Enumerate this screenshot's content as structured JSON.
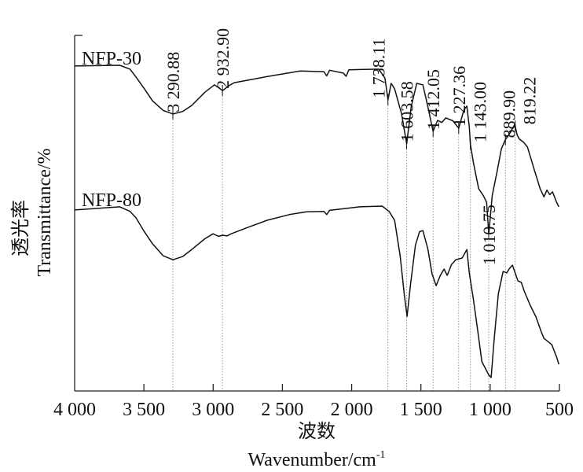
{
  "chart_data": {
    "type": "line",
    "title": "",
    "xlabel_cn": "波数",
    "xlabel": "Wavenumber/cm",
    "xlabel_sup": "-1",
    "ylabel_cn": "透光率",
    "ylabel": "Transmittance/%",
    "xlim": [
      4000,
      500
    ],
    "ylim": [
      0,
      100
    ],
    "x_ticks": [
      4000,
      3500,
      3000,
      2500,
      2000,
      1500,
      1000,
      500
    ],
    "x_tick_labels": [
      "4 000",
      "3 500",
      "3 000",
      "2 500",
      "2 000",
      "1 500",
      "1 000",
      "500"
    ],
    "grid": false,
    "series": [
      {
        "name": "NFP-30",
        "points": [
          [
            4000,
            91.4
          ],
          [
            3674,
            91.6
          ],
          [
            3600,
            90.5
          ],
          [
            3557,
            88.3
          ],
          [
            3500,
            85.2
          ],
          [
            3438,
            81.6
          ],
          [
            3360,
            78.9
          ],
          [
            3290,
            77.9
          ],
          [
            3220,
            78.6
          ],
          [
            3154,
            80.3
          ],
          [
            3060,
            84.0
          ],
          [
            2990,
            86.1
          ],
          [
            2932,
            84.5
          ],
          [
            2880,
            86.0
          ],
          [
            2848,
            86.7
          ],
          [
            2600,
            88.5
          ],
          [
            2371,
            90.0
          ],
          [
            2200,
            89.8
          ],
          [
            2180,
            88.6
          ],
          [
            2160,
            90.2
          ],
          [
            2060,
            89.4
          ],
          [
            2040,
            88.5
          ],
          [
            2020,
            90.3
          ],
          [
            1940,
            90.4
          ],
          [
            1804,
            90.5
          ],
          [
            1760,
            88.0
          ],
          [
            1738,
            81.9
          ],
          [
            1715,
            86.5
          ],
          [
            1690,
            85.0
          ],
          [
            1640,
            78.0
          ],
          [
            1603,
            69.5
          ],
          [
            1570,
            80.0
          ],
          [
            1530,
            86.5
          ],
          [
            1486,
            86.1
          ],
          [
            1450,
            80.0
          ],
          [
            1412,
            73.0
          ],
          [
            1380,
            76.1
          ],
          [
            1350,
            75.5
          ],
          [
            1320,
            76.8
          ],
          [
            1270,
            76.0
          ],
          [
            1227,
            73.9
          ],
          [
            1190,
            79.0
          ],
          [
            1168,
            80.1
          ],
          [
            1150,
            74.0
          ],
          [
            1143,
            69.5
          ],
          [
            1120,
            64.0
          ],
          [
            1083,
            56.9
          ],
          [
            1050,
            55.0
          ],
          [
            1026,
            53.1
          ],
          [
            1010,
            44.2
          ],
          [
            985,
            55.0
          ],
          [
            952,
            61.3
          ],
          [
            920,
            68.0
          ],
          [
            889,
            70.8
          ],
          [
            870,
            71.7
          ],
          [
            850,
            73.0
          ],
          [
            822,
            75.0
          ],
          [
            805,
            72.0
          ],
          [
            788,
            70.8
          ],
          [
            760,
            70.0
          ],
          [
            731,
            68.6
          ],
          [
            680,
            62.0
          ],
          [
            640,
            57.0
          ],
          [
            612,
            54.6
          ],
          [
            590,
            56.5
          ],
          [
            570,
            55.2
          ],
          [
            550,
            56.0
          ],
          [
            520,
            53.0
          ],
          [
            504,
            51.8
          ]
        ]
      },
      {
        "name": "NFP-80",
        "points": [
          [
            4000,
            50.9
          ],
          [
            3674,
            51.8
          ],
          [
            3600,
            50.5
          ],
          [
            3557,
            48.7
          ],
          [
            3500,
            45.0
          ],
          [
            3438,
            41.4
          ],
          [
            3360,
            38.0
          ],
          [
            3290,
            36.9
          ],
          [
            3220,
            37.8
          ],
          [
            3154,
            39.8
          ],
          [
            3060,
            42.8
          ],
          [
            3001,
            44.2
          ],
          [
            2960,
            43.5
          ],
          [
            2932,
            43.8
          ],
          [
            2900,
            43.6
          ],
          [
            2870,
            44.2
          ],
          [
            2750,
            46.0
          ],
          [
            2610,
            48.0
          ],
          [
            2450,
            49.6
          ],
          [
            2326,
            50.4
          ],
          [
            2200,
            50.5
          ],
          [
            2180,
            49.6
          ],
          [
            2160,
            50.8
          ],
          [
            2050,
            51.3
          ],
          [
            1940,
            51.8
          ],
          [
            1780,
            52.0
          ],
          [
            1730,
            50.5
          ],
          [
            1690,
            48.0
          ],
          [
            1650,
            38.0
          ],
          [
            1620,
            27.0
          ],
          [
            1600,
            21.0
          ],
          [
            1575,
            30.0
          ],
          [
            1540,
            41.0
          ],
          [
            1510,
            44.8
          ],
          [
            1486,
            45.1
          ],
          [
            1450,
            40.0
          ],
          [
            1420,
            33.0
          ],
          [
            1390,
            29.6
          ],
          [
            1360,
            32.5
          ],
          [
            1333,
            34.3
          ],
          [
            1310,
            32.5
          ],
          [
            1280,
            35.5
          ],
          [
            1248,
            36.9
          ],
          [
            1202,
            37.4
          ],
          [
            1168,
            39.8
          ],
          [
            1150,
            33.0
          ],
          [
            1122,
            25.9
          ],
          [
            1090,
            17.0
          ],
          [
            1060,
            8.2
          ],
          [
            1030,
            6.0
          ],
          [
            1010,
            4.5
          ],
          [
            993,
            3.8
          ],
          [
            970,
            15.0
          ],
          [
            941,
            27.4
          ],
          [
            907,
            33.6
          ],
          [
            880,
            33.2
          ],
          [
            860,
            34.5
          ],
          [
            839,
            35.4
          ],
          [
            800,
            31.0
          ],
          [
            775,
            30.5
          ],
          [
            754,
            28.1
          ],
          [
            710,
            24.0
          ],
          [
            669,
            20.8
          ],
          [
            630,
            16.5
          ],
          [
            612,
            14.8
          ],
          [
            580,
            13.8
          ],
          [
            555,
            13.0
          ],
          [
            520,
            9.5
          ],
          [
            504,
            7.5
          ]
        ]
      }
    ],
    "series_labels": [
      {
        "text": "NFP-30",
        "x": 3800,
        "y": 94
      },
      {
        "text": "NFP-80",
        "x": 3800,
        "y": 54
      }
    ],
    "annotations": [
      {
        "label": "3 290.88",
        "wn": 3290.88
      },
      {
        "label": "2 932.90",
        "wn": 2932.9
      },
      {
        "label": "1 738.11",
        "wn": 1738.11
      },
      {
        "label": "1 603.58",
        "wn": 1603.58
      },
      {
        "label": "1 412.05",
        "wn": 1412.05
      },
      {
        "label": "1 227.36",
        "wn": 1227.36
      },
      {
        "label": "1 143.00",
        "wn": 1143.0
      },
      {
        "label": "1 010.75",
        "wn": 1010.75
      },
      {
        "label": "889.90",
        "wn": 889.9
      },
      {
        "label": "819.22",
        "wn": 819.22
      }
    ]
  }
}
